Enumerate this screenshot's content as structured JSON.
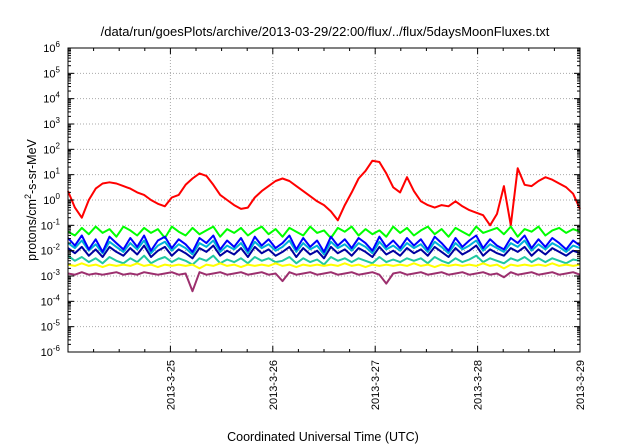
{
  "chart_data": {
    "type": "line",
    "title": "/data/run/goesPlots/archive/2013-03-29/22:00/flux/../flux/5daysMoonFluxes.txt",
    "xlabel": "Coordinated Universal Time (UTC)",
    "ylabel_main": "protons/cm",
    "ylabel_sup": "2",
    "ylabel_rest": "-s-sr-MeV",
    "yscale": "log",
    "ylim": [
      1e-06,
      1000000.0
    ],
    "xlim": [
      "2013-03-24 00:00",
      "2013-03-28 24:00"
    ],
    "grid": true,
    "x_tick_labels": [
      "2013-3-25",
      "2013-3-26",
      "2013-3-27",
      "2013-3-28",
      "2013-3-29"
    ],
    "y_tick_labels": [
      {
        "base": "10",
        "exp": "6"
      },
      {
        "base": "10",
        "exp": "5"
      },
      {
        "base": "10",
        "exp": "4"
      },
      {
        "base": "10",
        "exp": "3"
      },
      {
        "base": "10",
        "exp": "2"
      },
      {
        "base": "10",
        "exp": "1"
      },
      {
        "base": "10",
        "exp": "0"
      },
      {
        "base": "10",
        "exp": "-1"
      },
      {
        "base": "10",
        "exp": "-2"
      },
      {
        "base": "10",
        "exp": "-3"
      },
      {
        "base": "10",
        "exp": "-4"
      },
      {
        "base": "10",
        "exp": "-5"
      },
      {
        "base": "10",
        "exp": "-6"
      }
    ],
    "series": [
      {
        "color": "#ff0000",
        "values_log10": [
          0.35,
          -0.3,
          -0.7,
          0.0,
          0.45,
          0.65,
          0.7,
          0.65,
          0.55,
          0.45,
          0.3,
          0.2,
          0.0,
          -0.15,
          -0.25,
          0.1,
          0.2,
          0.6,
          0.85,
          1.05,
          0.95,
          0.6,
          0.2,
          0.0,
          -0.2,
          -0.35,
          -0.3,
          0.1,
          0.35,
          0.55,
          0.75,
          0.85,
          0.75,
          0.55,
          0.35,
          0.15,
          -0.05,
          -0.2,
          -0.45,
          -0.8,
          -0.2,
          0.3,
          0.85,
          1.15,
          1.55,
          1.5,
          1.05,
          0.5,
          0.3,
          0.9,
          0.35,
          -0.05,
          -0.2,
          -0.3,
          -0.2,
          -0.25,
          -0.05,
          -0.25,
          -0.4,
          -0.5,
          -0.6,
          -1.0,
          -0.55,
          0.55,
          -1.0,
          1.25,
          0.6,
          0.55,
          0.75,
          0.9,
          0.8,
          0.65,
          0.5,
          0.25,
          -0.35
        ]
      },
      {
        "color": "#00ff00",
        "values_log10": [
          -1.25,
          -1.4,
          -1.1,
          -1.35,
          -1.05,
          -1.3,
          -1.15,
          -1.45,
          -1.05,
          -1.2,
          -1.4,
          -1.1,
          -1.3,
          -1.15,
          -1.5,
          -1.05,
          -1.25,
          -1.4,
          -1.1,
          -1.35,
          -1.2,
          -1.05,
          -1.45,
          -1.15,
          -1.3,
          -1.1,
          -1.4,
          -1.2,
          -1.05,
          -1.35,
          -1.15,
          -1.45,
          -1.1,
          -1.25,
          -1.4,
          -1.05,
          -1.3,
          -1.2,
          -1.5,
          -1.1,
          -1.25,
          -1.05,
          -1.4,
          -1.15,
          -1.35,
          -1.2,
          -1.45,
          -1.05,
          -1.3,
          -1.1,
          -1.4,
          -1.2,
          -1.05,
          -1.35,
          -1.15,
          -1.45,
          -1.1,
          -1.25,
          -1.4,
          -1.05,
          -1.3,
          -1.2,
          -1.1,
          -1.35,
          -1.05,
          -1.45,
          -1.15,
          -1.25,
          -1.05,
          -1.4,
          -1.2,
          -1.1,
          -1.3,
          -1.15,
          -1.25
        ]
      },
      {
        "color": "#00b0d8",
        "values_log10": [
          -1.7,
          -1.9,
          -1.6,
          -2.0,
          -1.75,
          -2.1,
          -1.65,
          -1.85,
          -2.05,
          -1.7,
          -1.95,
          -1.6,
          -2.1,
          -1.8,
          -1.65,
          -2.0,
          -1.75,
          -1.9,
          -2.15,
          -1.7,
          -1.85,
          -1.6,
          -2.05,
          -1.8,
          -1.95,
          -1.7,
          -2.1,
          -1.65,
          -1.9,
          -1.75,
          -2.0,
          -1.85,
          -1.6,
          -2.05,
          -1.7,
          -1.95,
          -1.8,
          -2.15,
          -1.65,
          -1.9,
          -1.75,
          -2.0,
          -1.7,
          -1.85,
          -2.1,
          -1.65,
          -1.95,
          -1.8,
          -2.0,
          -1.7,
          -1.9,
          -1.75,
          -2.05,
          -1.65,
          -1.85,
          -2.1,
          -1.7,
          -1.95,
          -1.8,
          -1.6,
          -2.0,
          -1.75,
          -1.9,
          -2.05,
          -1.7,
          -1.85,
          -1.6,
          -2.0,
          -1.75,
          -1.95,
          -1.7,
          -1.85,
          -2.05,
          -1.8,
          -1.9
        ]
      },
      {
        "color": "#0000ff",
        "values_log10": [
          -1.5,
          -1.8,
          -1.4,
          -1.95,
          -1.55,
          -2.05,
          -1.45,
          -1.7,
          -1.95,
          -1.5,
          -1.85,
          -1.4,
          -2.0,
          -1.6,
          -1.45,
          -1.9,
          -1.55,
          -1.75,
          -2.05,
          -1.5,
          -1.7,
          -1.4,
          -1.95,
          -1.6,
          -1.85,
          -1.5,
          -2.0,
          -1.45,
          -1.8,
          -1.55,
          -1.9,
          -1.7,
          -1.4,
          -1.95,
          -1.5,
          -1.85,
          -1.6,
          -2.05,
          -1.45,
          -1.8,
          -1.55,
          -1.9,
          -1.5,
          -1.7,
          -2.0,
          -1.45,
          -1.85,
          -1.6,
          -1.9,
          -1.5,
          -1.8,
          -1.55,
          -1.95,
          -1.45,
          -1.7,
          -2.0,
          -1.5,
          -1.85,
          -1.6,
          -1.4,
          -1.9,
          -1.55,
          -1.8,
          -1.95,
          -1.5,
          -1.7,
          -1.4,
          -1.9,
          -1.55,
          -1.85,
          -1.5,
          -1.7,
          -1.95,
          -1.6,
          -1.8
        ]
      },
      {
        "color": "#0000a0",
        "values_log10": [
          -1.9,
          -2.1,
          -1.85,
          -2.2,
          -1.95,
          -2.25,
          -1.85,
          -2.05,
          -2.2,
          -1.9,
          -2.15,
          -1.8,
          -2.25,
          -2.0,
          -1.85,
          -2.2,
          -1.95,
          -2.1,
          -2.3,
          -1.9,
          -2.05,
          -1.8,
          -2.2,
          -2.0,
          -2.15,
          -1.9,
          -2.25,
          -1.85,
          -2.1,
          -1.95,
          -2.2,
          -2.05,
          -1.85,
          -2.25,
          -1.9,
          -2.15,
          -2.0,
          -2.3,
          -1.85,
          -2.1,
          -1.95,
          -2.2,
          -1.9,
          -2.05,
          -2.25,
          -1.85,
          -2.15,
          -2.0,
          -2.2,
          -1.9,
          -2.1,
          -1.95,
          -2.2,
          -1.85,
          -2.05,
          -2.25,
          -1.9,
          -2.15,
          -2.0,
          -1.8,
          -2.2,
          -1.95,
          -2.1,
          -2.2,
          -1.9,
          -2.05,
          -1.85,
          -2.2,
          -1.95,
          -2.15,
          -1.9,
          -2.05,
          -2.2,
          -2.0,
          -2.1
        ]
      },
      {
        "color": "#20c8a0",
        "values_log10": [
          -2.2,
          -2.4,
          -2.25,
          -2.45,
          -2.3,
          -2.5,
          -2.25,
          -2.4,
          -2.5,
          -2.3,
          -2.45,
          -2.2,
          -2.5,
          -2.35,
          -2.25,
          -2.45,
          -2.3,
          -2.4,
          -2.55,
          -2.3,
          -2.4,
          -2.2,
          -2.5,
          -2.35,
          -2.45,
          -2.3,
          -2.5,
          -2.25,
          -2.4,
          -2.3,
          -2.45,
          -2.4,
          -2.25,
          -2.5,
          -2.3,
          -2.45,
          -2.35,
          -2.55,
          -2.25,
          -2.4,
          -2.3,
          -2.45,
          -2.3,
          -2.4,
          -2.5,
          -2.25,
          -2.45,
          -2.35,
          -2.45,
          -2.3,
          -2.4,
          -2.3,
          -2.5,
          -2.25,
          -2.4,
          -2.5,
          -2.3,
          -2.45,
          -2.35,
          -2.2,
          -2.45,
          -2.3,
          -2.4,
          -2.5,
          -2.3,
          -2.4,
          -2.25,
          -2.45,
          -2.3,
          -2.45,
          -2.3,
          -2.4,
          -2.5,
          -2.35,
          -2.4
        ]
      },
      {
        "color": "#ffff00",
        "values_log10": [
          -2.55,
          -2.6,
          -2.5,
          -2.6,
          -2.55,
          -2.65,
          -2.55,
          -2.6,
          -2.55,
          -2.6,
          -2.5,
          -2.6,
          -2.55,
          -2.65,
          -2.55,
          -2.6,
          -2.55,
          -2.6,
          -2.55,
          -2.7,
          -2.55,
          -2.6,
          -2.5,
          -2.6,
          -2.55,
          -2.65,
          -2.55,
          -2.6,
          -2.55,
          -2.6,
          -2.5,
          -2.6,
          -2.55,
          -2.65,
          -2.55,
          -2.6,
          -2.55,
          -2.6,
          -2.55,
          -2.6,
          -2.5,
          -2.6,
          -2.55,
          -2.65,
          -2.55,
          -2.6,
          -2.55,
          -2.6,
          -2.55,
          -2.6,
          -2.5,
          -2.6,
          -2.55,
          -2.65,
          -2.55,
          -2.6,
          -2.55,
          -2.6,
          -2.55,
          -2.6,
          -2.5,
          -2.6,
          -2.55,
          -2.7,
          -2.55,
          -2.6,
          -2.55,
          -2.6,
          -2.55,
          -2.6,
          -2.5,
          -2.6,
          -2.55,
          -2.6,
          -2.55
        ]
      },
      {
        "color": "#9c2f6e",
        "values_log10": [
          -2.9,
          -2.95,
          -2.85,
          -2.95,
          -2.9,
          -2.95,
          -2.9,
          -2.85,
          -2.95,
          -2.9,
          -2.95,
          -2.85,
          -2.9,
          -2.95,
          -2.9,
          -2.85,
          -2.95,
          -2.9,
          -3.6,
          -2.85,
          -2.95,
          -2.9,
          -2.85,
          -2.95,
          -2.9,
          -2.85,
          -2.95,
          -2.9,
          -2.85,
          -2.95,
          -2.9,
          -3.2,
          -2.85,
          -2.95,
          -2.9,
          -2.85,
          -2.95,
          -2.9,
          -2.85,
          -2.95,
          -2.9,
          -2.85,
          -2.95,
          -2.9,
          -2.85,
          -2.95,
          -3.3,
          -2.9,
          -2.85,
          -2.95,
          -2.9,
          -2.85,
          -2.95,
          -2.9,
          -2.85,
          -2.95,
          -2.9,
          -2.85,
          -2.95,
          -2.9,
          -2.85,
          -2.95,
          -2.9,
          -3.05,
          -2.85,
          -2.95,
          -2.9,
          -2.85,
          -2.95,
          -2.9,
          -2.85,
          -2.95,
          -2.9,
          -2.85,
          -2.95
        ]
      }
    ]
  }
}
